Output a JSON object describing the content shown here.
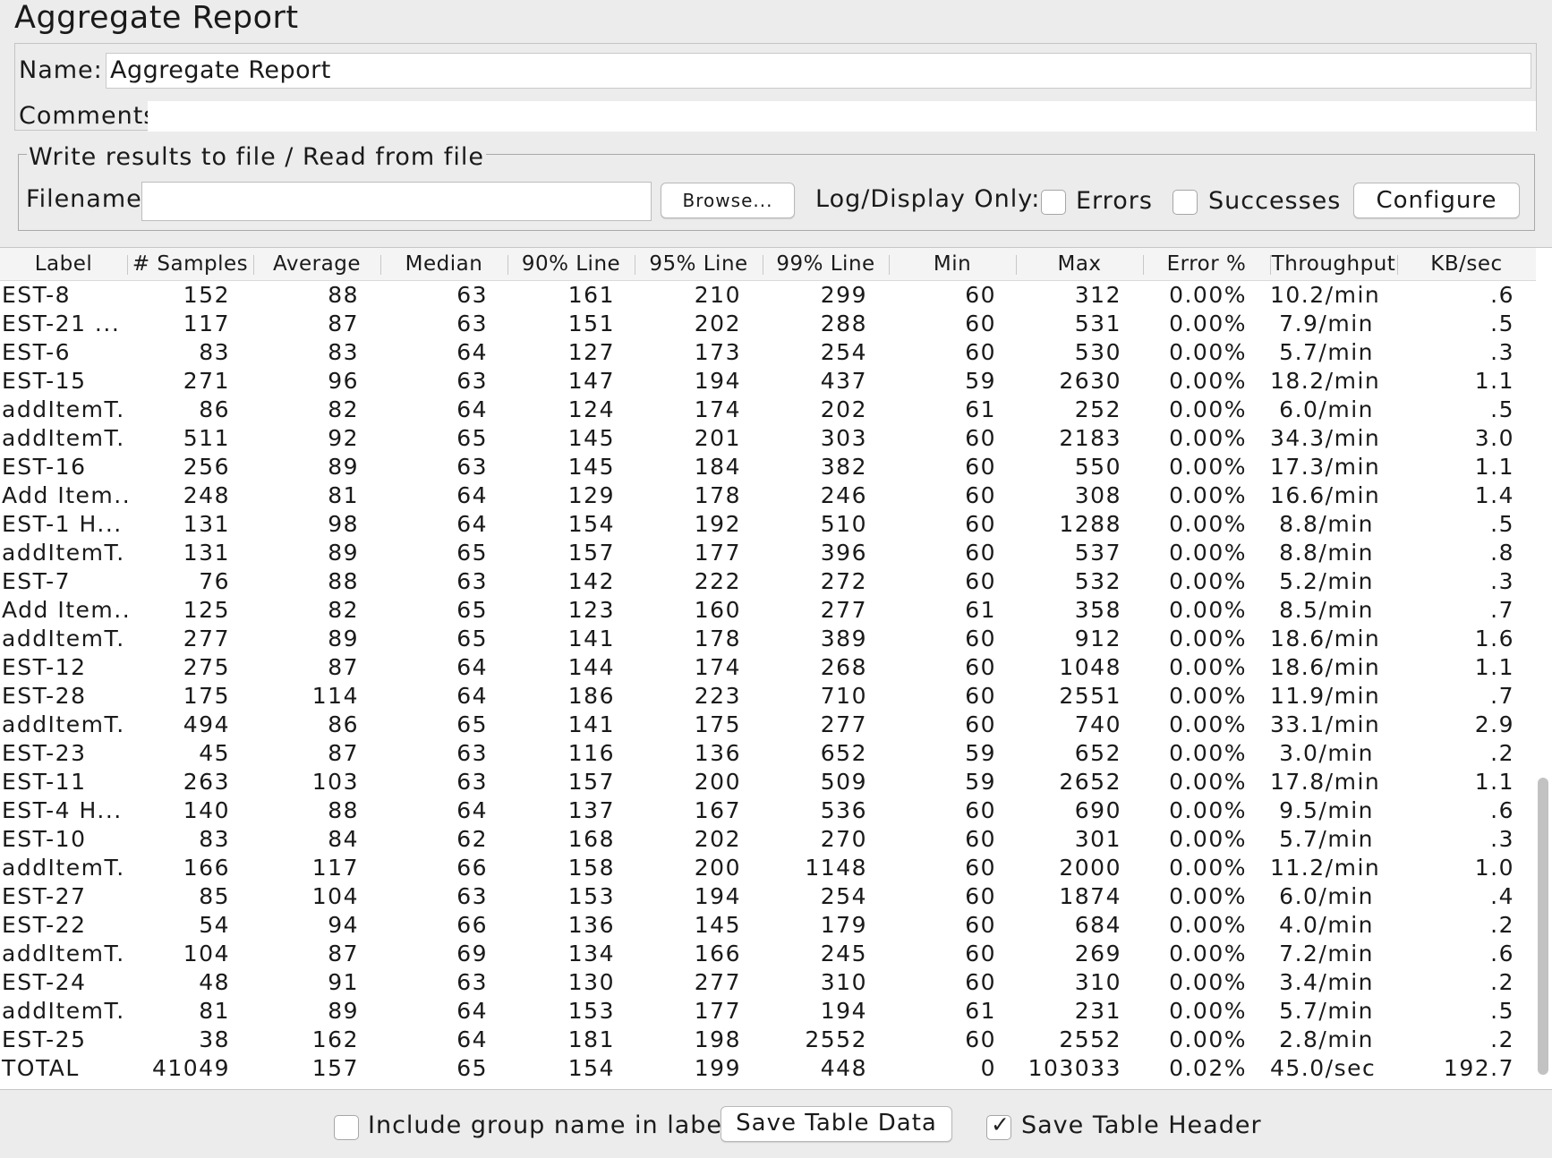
{
  "window": {
    "title": "Aggregate Report"
  },
  "name_field": {
    "label": "Name:",
    "value": "Aggregate Report"
  },
  "comments_field": {
    "label": "Comments:",
    "value": ""
  },
  "file_section": {
    "legend": "Write results to file / Read from file",
    "filename_label": "Filename",
    "filename_value": "",
    "browse_label": "Browse...",
    "log_display_label": "Log/Display Only:",
    "errors_label": "Errors",
    "errors_checked": false,
    "successes_label": "Successes",
    "successes_checked": false,
    "configure_label": "Configure"
  },
  "table": {
    "columns": [
      "Label",
      "# Samples",
      "Average",
      "Median",
      "90% Line",
      "95% Line",
      "99% Line",
      "Min",
      "Max",
      "Error %",
      "Throughput",
      "KB/sec"
    ],
    "rows": [
      [
        "EST-8",
        "152",
        "88",
        "63",
        "161",
        "210",
        "299",
        "60",
        "312",
        "0.00%",
        "10.2/min",
        ".6"
      ],
      [
        "EST-21 ...",
        "117",
        "87",
        "63",
        "151",
        "202",
        "288",
        "60",
        "531",
        "0.00%",
        "7.9/min",
        ".5"
      ],
      [
        "EST-6",
        "83",
        "83",
        "64",
        "127",
        "173",
        "254",
        "60",
        "530",
        "0.00%",
        "5.7/min",
        ".3"
      ],
      [
        "EST-15",
        "271",
        "96",
        "63",
        "147",
        "194",
        "437",
        "59",
        "2630",
        "0.00%",
        "18.2/min",
        "1.1"
      ],
      [
        "addItemT...",
        "86",
        "82",
        "64",
        "124",
        "174",
        "202",
        "61",
        "252",
        "0.00%",
        "6.0/min",
        ".5"
      ],
      [
        "addItemT...",
        "511",
        "92",
        "65",
        "145",
        "201",
        "303",
        "60",
        "2183",
        "0.00%",
        "34.3/min",
        "3.0"
      ],
      [
        "EST-16",
        "256",
        "89",
        "63",
        "145",
        "184",
        "382",
        "60",
        "550",
        "0.00%",
        "17.3/min",
        "1.1"
      ],
      [
        "Add Item...",
        "248",
        "81",
        "64",
        "129",
        "178",
        "246",
        "60",
        "308",
        "0.00%",
        "16.6/min",
        "1.4"
      ],
      [
        "EST-1 H...",
        "131",
        "98",
        "64",
        "154",
        "192",
        "510",
        "60",
        "1288",
        "0.00%",
        "8.8/min",
        ".5"
      ],
      [
        "addItemT...",
        "131",
        "89",
        "65",
        "157",
        "177",
        "396",
        "60",
        "537",
        "0.00%",
        "8.8/min",
        ".8"
      ],
      [
        "EST-7",
        "76",
        "88",
        "63",
        "142",
        "222",
        "272",
        "60",
        "532",
        "0.00%",
        "5.2/min",
        ".3"
      ],
      [
        "Add Item...",
        "125",
        "82",
        "65",
        "123",
        "160",
        "277",
        "61",
        "358",
        "0.00%",
        "8.5/min",
        ".7"
      ],
      [
        "addItemT...",
        "277",
        "89",
        "65",
        "141",
        "178",
        "389",
        "60",
        "912",
        "0.00%",
        "18.6/min",
        "1.6"
      ],
      [
        "EST-12",
        "275",
        "87",
        "64",
        "144",
        "174",
        "268",
        "60",
        "1048",
        "0.00%",
        "18.6/min",
        "1.1"
      ],
      [
        "EST-28",
        "175",
        "114",
        "64",
        "186",
        "223",
        "710",
        "60",
        "2551",
        "0.00%",
        "11.9/min",
        ".7"
      ],
      [
        "addItemT...",
        "494",
        "86",
        "65",
        "141",
        "175",
        "277",
        "60",
        "740",
        "0.00%",
        "33.1/min",
        "2.9"
      ],
      [
        "EST-23",
        "45",
        "87",
        "63",
        "116",
        "136",
        "652",
        "59",
        "652",
        "0.00%",
        "3.0/min",
        ".2"
      ],
      [
        "EST-11",
        "263",
        "103",
        "63",
        "157",
        "200",
        "509",
        "59",
        "2652",
        "0.00%",
        "17.8/min",
        "1.1"
      ],
      [
        "EST-4 H...",
        "140",
        "88",
        "64",
        "137",
        "167",
        "536",
        "60",
        "690",
        "0.00%",
        "9.5/min",
        ".6"
      ],
      [
        "EST-10",
        "83",
        "84",
        "62",
        "168",
        "202",
        "270",
        "60",
        "301",
        "0.00%",
        "5.7/min",
        ".3"
      ],
      [
        "addItemT...",
        "166",
        "117",
        "66",
        "158",
        "200",
        "1148",
        "60",
        "2000",
        "0.00%",
        "11.2/min",
        "1.0"
      ],
      [
        "EST-27",
        "85",
        "104",
        "63",
        "153",
        "194",
        "254",
        "60",
        "1874",
        "0.00%",
        "6.0/min",
        ".4"
      ],
      [
        "EST-22",
        "54",
        "94",
        "66",
        "136",
        "145",
        "179",
        "60",
        "684",
        "0.00%",
        "4.0/min",
        ".2"
      ],
      [
        "addItemT...",
        "104",
        "87",
        "69",
        "134",
        "166",
        "245",
        "60",
        "269",
        "0.00%",
        "7.2/min",
        ".6"
      ],
      [
        "EST-24",
        "48",
        "91",
        "63",
        "130",
        "277",
        "310",
        "60",
        "310",
        "0.00%",
        "3.4/min",
        ".2"
      ],
      [
        "addItemT...",
        "81",
        "89",
        "64",
        "153",
        "177",
        "194",
        "61",
        "231",
        "0.00%",
        "5.7/min",
        ".5"
      ],
      [
        "EST-25",
        "38",
        "162",
        "64",
        "181",
        "198",
        "2552",
        "60",
        "2552",
        "0.00%",
        "2.8/min",
        ".2"
      ],
      [
        "TOTAL",
        "41049",
        "157",
        "65",
        "154",
        "199",
        "448",
        "0",
        "103033",
        "0.02%",
        "45.0/sec",
        "192.7"
      ]
    ]
  },
  "footer": {
    "include_group_label": "Include group name in label?",
    "include_group_checked": false,
    "save_data_label": "Save Table Data",
    "save_header_label": "Save Table Header",
    "save_header_checked": true,
    "check_glyph": "✓"
  }
}
